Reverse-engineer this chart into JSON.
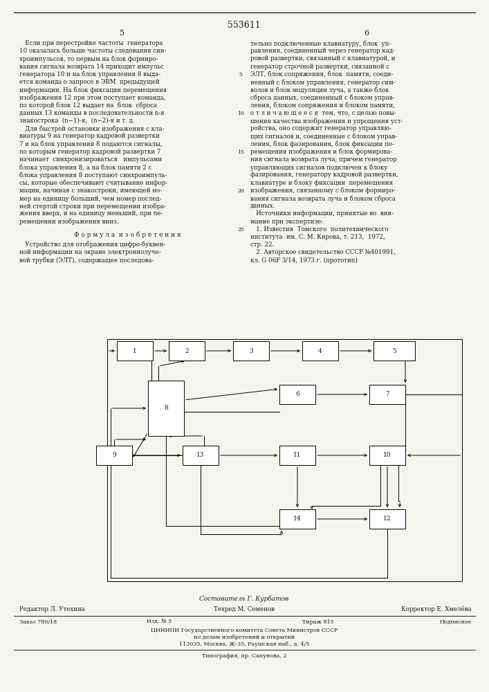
{
  "patent_number": "553611",
  "bg_color": "#f5f5f0",
  "text_color": "#1a1a1a",
  "col1_text_lines": [
    "   Если при перестройке частоты  генератора",
    "10 оказалась больше частоты следования син-",
    "хроимпульсов, то первым на блок формиро-",
    "вания сигнала возврата 14 приходит импульс",
    "генератора 10 и на блок управления 8 выда-",
    "ется команда о запросе в ЭВМ  предыдущей",
    "информации. На блок фиксации перемещения",
    "изображения 12 при этом поступает команда,",
    "по которой блок 12 выдает на  блок  сброса",
    "данных 13 команды в последовательности n-я",
    "знакострока  (n−1)-я,  (n−2)-я и т. д.",
    "   Для быстрой остановки изображения с кла-",
    "виатуры 9 на генератор кадровой развертки",
    "7 и на блок управления 8 подаются сигналы,",
    "по которым генератор кадровой развертки 7",
    "начинает  синхронизироваться   импульсами",
    "блока управления 8, а на блок памяти 2 с",
    "блока управления 8 поступают синхроимпуль-",
    "сы, которые обеспечивают считывание инфор-",
    "мации, начиная с знакостроки, имеющей но-",
    "мер на единицу больший, чем номер послед-",
    "ней стертой строки при перемещении изобра-",
    "жения вверх, и на единицу меньший, при пе-",
    "ремещении изображения вниз."
  ],
  "col2_text_lines": [
    "тельно подключенные клавиатуру, блок  уп-",
    "равления, соединенный через генератор кад-",
    "ровой развертки, связанный с клавиатурой, и",
    "генератор строчной развертки, связанной с",
    "ЭЛТ, блок сопряжения, блок  памяти, соеди-",
    "ненный с блоком управления, генератор сим-",
    "волов и блок модуляции луча, а также блок",
    "сброса данных, соединенный с блоком управ-",
    "ления, блоком сопряжения и блоком памяти,",
    "о т л и ч а ю щ е е с я  тем, что, с целью повы-",
    "шения качества изображения и упрощения уст-",
    "ройства, оно содержит генератор управляю-",
    "щих сигналов и, соединенные с блоком управ-",
    "ления, блок фазирования, блок фиксации пе-",
    "ремещения изображения и блок формирова-",
    "ния сигнала возврата луча; причем генератор",
    "управляющих сигналов подключен к блоку",
    "фазирования, генератору кадровой развертки,",
    "клавиатуре и блоку фиксации  перемещения",
    "изображения, связанному с блоком формиро-",
    "вания сигнала возврата луча и блоком сброса",
    "данных.",
    "   Источники информации, принятые во  вни-",
    "мание при экспертизе:",
    "   1. Известия  Томского  политехнического",
    "института  им. С. М. Кирова, т. 213,  1972,",
    "стр. 22.",
    "   2. Авторское свидетельство СССР №401991,",
    "кл. G 06F 3/14, 1973 г. (прототип)"
  ],
  "formula_header": "Ф о р м у л а  и з о б р е т е н и я",
  "formula_lines": [
    "   Устройство для отображения цифро-буквен-",
    "ной информации на экране электроннолуче-",
    "вой трубки (ЭЛТ), содержащее последова-"
  ],
  "linenumbers": [
    "5",
    "10",
    "15",
    "20",
    "25"
  ],
  "compiler": "Составитель Г. Курбатов",
  "editor": "Редактор Л. Утехина",
  "techred": "Техред М. Семенов",
  "corrector": "Корректор Е. Хмелёва",
  "order": "Заказ 780/18",
  "issue": "Изд. № 5",
  "circulation": "Тираж 815",
  "subscription": "Подписное",
  "org_line1": "ЦНИИПИ Государственного комитета Совета Министров СССР",
  "org_line2": "по делам изобретений и открытий",
  "org_line3": "113035, Москва, Ж-35, Раушская наб., д. 4/5",
  "print_line": "Типография, пр. Сапунова, 2"
}
